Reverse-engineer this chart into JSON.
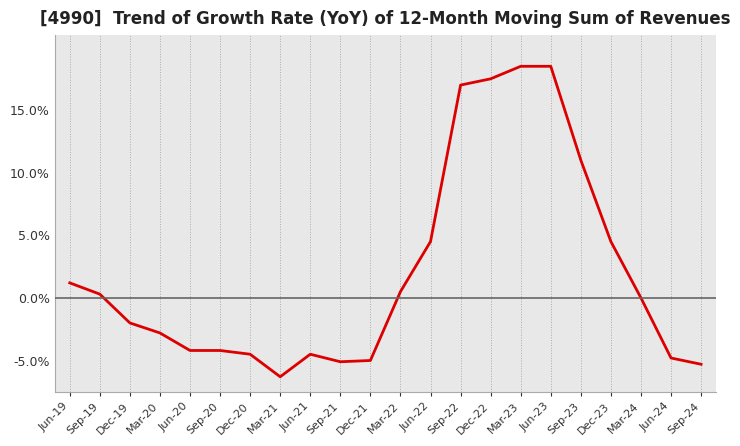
{
  "title": "[4990]  Trend of Growth Rate (YoY) of 12-Month Moving Sum of Revenues",
  "title_fontsize": 12,
  "line_color": "#dd0000",
  "plot_bg_color": "#e8e8e8",
  "fig_bg_color": "#ffffff",
  "grid_color": "#aaaaaa",
  "zero_line_color": "#666666",
  "tick_label_color": "#333333",
  "xlabels": [
    "Jun-19",
    "Sep-19",
    "Dec-19",
    "Mar-20",
    "Jun-20",
    "Sep-20",
    "Dec-20",
    "Mar-21",
    "Jun-21",
    "Sep-21",
    "Dec-21",
    "Mar-22",
    "Jun-22",
    "Sep-22",
    "Dec-22",
    "Mar-23",
    "Jun-23",
    "Sep-23",
    "Dec-23",
    "Mar-24",
    "Jun-24",
    "Sep-24"
  ],
  "values": [
    1.2,
    0.3,
    -2.0,
    -2.8,
    -4.2,
    -4.2,
    -4.5,
    -6.3,
    -4.5,
    -5.1,
    -5.0,
    0.5,
    4.5,
    17.0,
    17.5,
    18.5,
    18.5,
    11.0,
    4.5,
    0.0,
    -4.8,
    -5.3
  ],
  "ylim": [
    -7.5,
    21.0
  ],
  "yticks": [
    -5.0,
    0.0,
    5.0,
    10.0,
    15.0
  ]
}
